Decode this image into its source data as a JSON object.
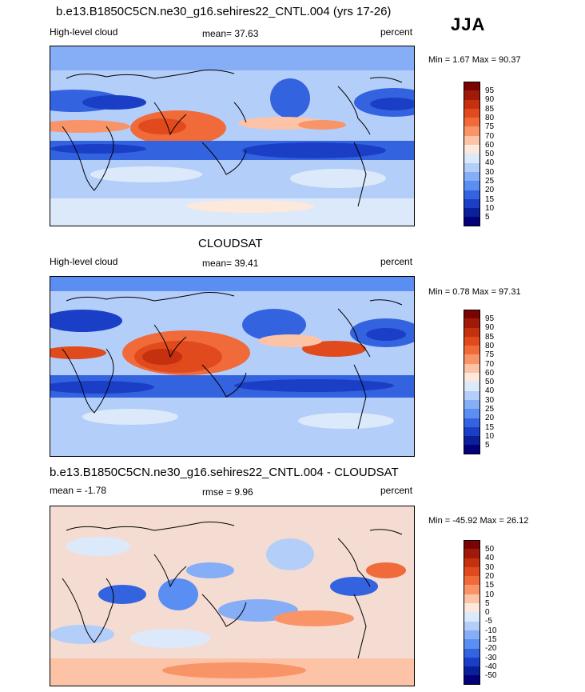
{
  "season": "JJA",
  "panels": [
    {
      "title": "b.e13.B1850C5CN.ne30_g16.sehires22_CNTL.004 (yrs 17-26)",
      "left_label": "High-level cloud",
      "center_label": "mean=  37.63",
      "right_label": "percent",
      "minmax": "Min =   1.67 Max =  90.37",
      "colorbar_labels": [
        "95",
        "90",
        "85",
        "80",
        "75",
        "70",
        "60",
        "50",
        "40",
        "30",
        "25",
        "20",
        "15",
        "10",
        "5"
      ],
      "colorbar_colors": [
        "#7a0403",
        "#a01a0a",
        "#c5300f",
        "#e14a1c",
        "#f06a3a",
        "#f99468",
        "#fcc3a6",
        "#fde8dc",
        "#dce9fb",
        "#b4cefa",
        "#85aef7",
        "#5a8ef2",
        "#3463e0",
        "#1a3fc6",
        "#0a1f9a",
        "#04007a"
      ],
      "map_base_color": "#a8c8ff"
    },
    {
      "title": "CLOUDSAT",
      "left_label": "High-level cloud",
      "center_label": "mean=  39.41",
      "right_label": "percent",
      "minmax": "Min =   0.78 Max =  97.31",
      "colorbar_labels": [
        "95",
        "90",
        "85",
        "80",
        "75",
        "70",
        "60",
        "50",
        "40",
        "30",
        "25",
        "20",
        "15",
        "10",
        "5"
      ],
      "colorbar_colors": [
        "#7a0403",
        "#a01a0a",
        "#c5300f",
        "#e14a1c",
        "#f06a3a",
        "#f99468",
        "#fcc3a6",
        "#fde8dc",
        "#dce9fb",
        "#b4cefa",
        "#85aef7",
        "#5a8ef2",
        "#3463e0",
        "#1a3fc6",
        "#0a1f9a",
        "#04007a"
      ],
      "map_base_color": "#a8c8ff"
    },
    {
      "title": "b.e13.B1850C5CN.ne30_g16.sehires22_CNTL.004 - CLOUDSAT",
      "left_label": "mean =  -1.78",
      "center_label": "rmse =    9.96",
      "right_label": "percent",
      "minmax": "Min = -45.92 Max =  26.12",
      "colorbar_labels": [
        "50",
        "40",
        "30",
        "20",
        "15",
        "10",
        "5",
        "0",
        "-5",
        "-10",
        "-15",
        "-20",
        "-30",
        "-40",
        "-50"
      ],
      "colorbar_colors": [
        "#7a0403",
        "#a01a0a",
        "#c5300f",
        "#e14a1c",
        "#f06a3a",
        "#f99468",
        "#fcc3a6",
        "#fde8dc",
        "#dce9fb",
        "#b4cefa",
        "#85aef7",
        "#5a8ef2",
        "#3463e0",
        "#1a3fc6",
        "#0a1f9a",
        "#04007a"
      ],
      "map_base_color": "#f5dcd2"
    }
  ]
}
